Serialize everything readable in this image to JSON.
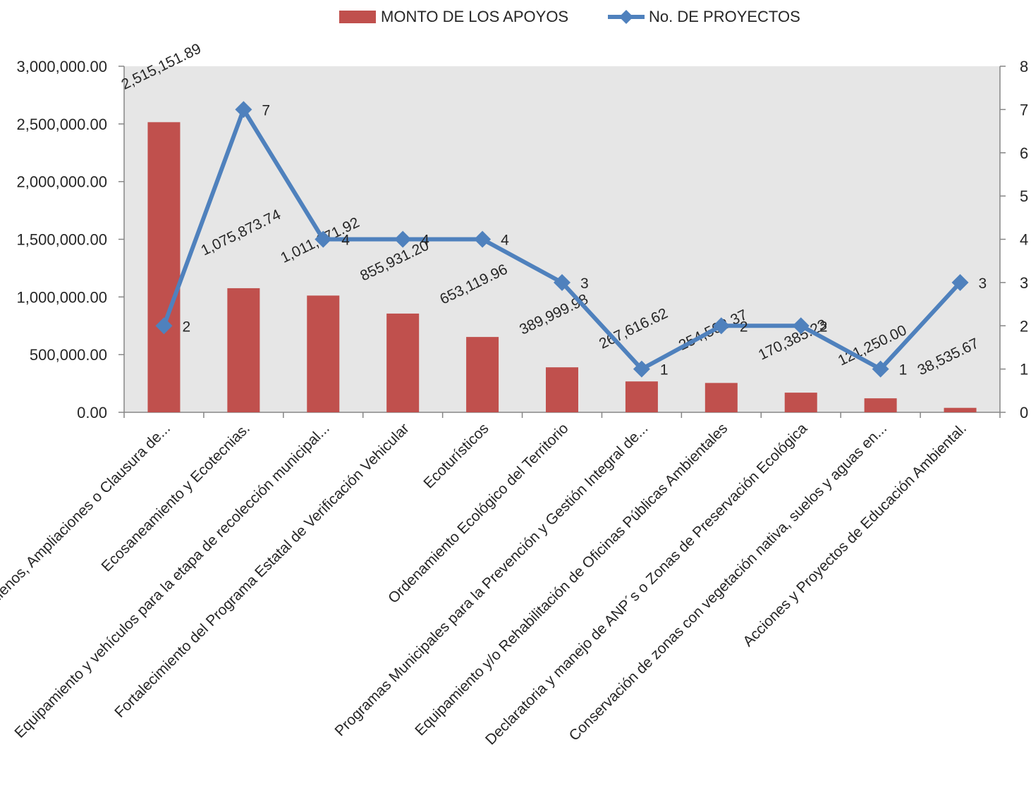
{
  "chart_data": {
    "type": "bar",
    "categories": [
      "Rellenos, Ampliaciones o Clausura de...",
      "Ecosaneamiento y Ecotecnias.",
      "Equipamiento y vehículos para la etapa de recolección municipal...",
      "Fortalecimiento del Programa Estatal de Verificación Vehicular",
      "Ecoturísticos",
      "Ordenamiento Ecológico del Territorio",
      "Programas Municipales para la Prevención y Gestión Integral de...",
      "Equipamiento y/o Rehabilitación de Oficinas Públicas Ambientales",
      "Declaratoria y manejo de ANP´s o Zonas de Preservación Ecológica",
      "Conservación de zonas con vegetación nativa, suelos y aguas en...",
      "Acciones y Proyectos de Educación Ambiental."
    ],
    "series": [
      {
        "name": "MONTO DE LOS APOYOS",
        "type": "bar",
        "axis": "left",
        "color": "#C0504D",
        "values": [
          2515151.89,
          1075873.74,
          1011971.92,
          855931.2,
          653119.96,
          389999.98,
          267616.62,
          254502.37,
          170385.23,
          121250.0,
          38535.67
        ],
        "labels": [
          "2,515,151.89",
          "1,075,873.74",
          "1,011,971.92",
          "855,931.20",
          "653,119.96",
          "389,999.98",
          "267,616.62",
          "254,502.37",
          "170,385.23",
          "121,250.00",
          "38,535.67"
        ]
      },
      {
        "name": "No. DE PROYECTOS",
        "type": "line",
        "axis": "right",
        "color": "#4F81BD",
        "values": [
          2,
          7,
          4,
          4,
          4,
          3,
          1,
          2,
          2,
          1,
          3
        ],
        "labels": [
          "2",
          "7",
          "4",
          "4",
          "4",
          "3",
          "1",
          "2",
          "2",
          "1",
          "3"
        ]
      }
    ],
    "y_left": {
      "lim": [
        0,
        3000000
      ],
      "ticks": [
        "0.00",
        "500,000.00",
        "1,000,000.00",
        "1,500,000.00",
        "2,000,000.00",
        "2,500,000.00",
        "3,000,000.00"
      ]
    },
    "y_right": {
      "lim": [
        0,
        8
      ],
      "ticks": [
        "0",
        "1",
        "2",
        "3",
        "4",
        "5",
        "6",
        "7",
        "8"
      ]
    },
    "plot_background": "#E6E6E6",
    "grid": false,
    "legend": "top-center"
  }
}
